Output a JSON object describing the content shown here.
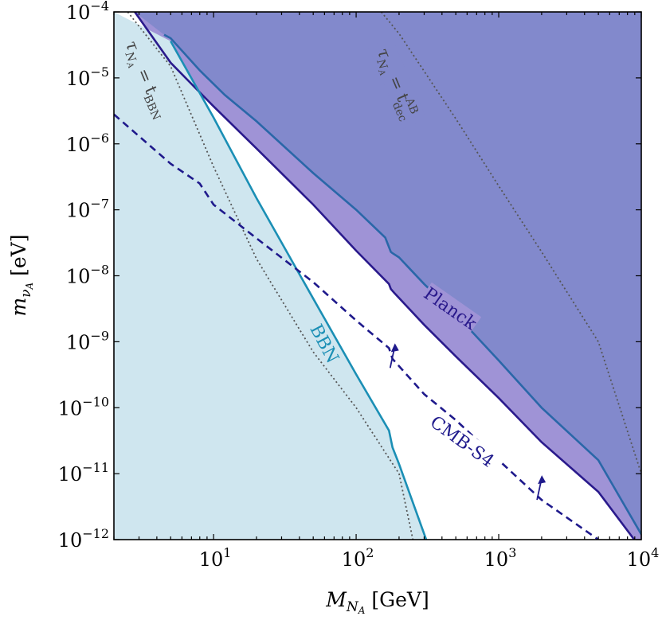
{
  "chart_data": {
    "type": "area",
    "title": "",
    "xlabel": "M_{N_A} [GeV]",
    "ylabel": "m_{ν_A} [eV]",
    "xscale": "log",
    "yscale": "log",
    "xlim": [
      2,
      10000
    ],
    "ylim": [
      1e-12,
      0.0001
    ],
    "x_ticks": [
      {
        "value": 10,
        "base": "10",
        "exp": "1"
      },
      {
        "value": 100,
        "base": "10",
        "exp": "2"
      },
      {
        "value": 1000,
        "base": "10",
        "exp": "3"
      },
      {
        "value": 10000,
        "base": "10",
        "exp": "4"
      }
    ],
    "y_ticks": [
      {
        "value": 0.0001,
        "base": "10",
        "exp": "−4"
      },
      {
        "value": 1e-05,
        "base": "10",
        "exp": "−5"
      },
      {
        "value": 1e-06,
        "base": "10",
        "exp": "−6"
      },
      {
        "value": 1e-07,
        "base": "10",
        "exp": "−7"
      },
      {
        "value": 1e-08,
        "base": "10",
        "exp": "−8"
      },
      {
        "value": 1e-09,
        "base": "10",
        "exp": "−9"
      },
      {
        "value": 1e-10,
        "base": "10",
        "exp": "−10"
      },
      {
        "value": 1e-11,
        "base": "10",
        "exp": "−11"
      },
      {
        "value": 1e-12,
        "base": "10",
        "exp": "−12"
      }
    ],
    "series": [
      {
        "name": "Planck",
        "style": "solid",
        "color": "#2a1a8c",
        "fill": "#8289cc",
        "x": [
          2.8,
          5,
          10,
          20,
          50,
          100,
          170,
          175,
          185,
          300,
          500,
          1000,
          2000,
          5000,
          10000
        ],
        "y": [
          0.0001,
          1.7e-05,
          3.7e-06,
          8.5e-07,
          1.2e-07,
          2.4e-08,
          7.5e-09,
          6.3e-09,
          5.5e-09,
          1.8e-09,
          6e-10,
          1.4e-10,
          3e-11,
          5.3e-12,
          7.2e-13
        ]
      },
      {
        "name": "Planck_outer",
        "style": "solid",
        "color": "#2a67a8",
        "fill": "#9f93d6",
        "x": [
          4.5,
          5,
          8,
          12,
          20,
          50,
          100,
          160,
          175,
          180,
          200,
          300,
          500,
          1000,
          2000,
          5000,
          10000
        ],
        "y": [
          4.5e-05,
          4e-05,
          1.3e-05,
          5.5e-06,
          2.2e-06,
          3.6e-07,
          1e-07,
          3.8e-08,
          2.3e-08,
          2.2e-08,
          1.9e-08,
          7.5e-09,
          2.6e-09,
          5.2e-10,
          1e-10,
          1.6e-11,
          1.2e-12
        ]
      },
      {
        "name": "BBN",
        "style": "solid",
        "color": "#1b8fb5",
        "fill": "#cfe6ef",
        "x": [
          2,
          2,
          5,
          10,
          20,
          50,
          100,
          170,
          180,
          200,
          310
        ],
        "y": [
          1e-12,
          0.0001,
          3.6e-05,
          2.5e-06,
          1.5e-07,
          4.5e-09,
          3.2e-10,
          4.5e-11,
          2.5e-11,
          1.4e-11,
          1e-12
        ]
      },
      {
        "name": "CMB-S4",
        "style": "dashed",
        "color": "#1f1a8c",
        "x": [
          2,
          5,
          8,
          10,
          20,
          50,
          100,
          170,
          180,
          300,
          500,
          1000,
          2000,
          5000
        ],
        "y": [
          2.8e-06,
          5e-07,
          2.5e-07,
          1.2e-07,
          3.7e-08,
          8e-09,
          2.1e-09,
          8e-10,
          5.5e-10,
          1.6e-10,
          6.5e-11,
          1.6e-11,
          4e-12,
          1e-12
        ]
      },
      {
        "name": "tau_BBN",
        "style": "dotted",
        "color": "#555555",
        "x": [
          2.5,
          5,
          10,
          20,
          50,
          100,
          200,
          250
        ],
        "y": [
          0.0001,
          1.5e-05,
          4.5e-07,
          1.8e-08,
          7e-10,
          1e-10,
          1e-11,
          1e-12
        ]
      },
      {
        "name": "tau_dec",
        "style": "dotted",
        "color": "#555555",
        "x": [
          150,
          200,
          500,
          1000,
          2000,
          5000,
          10000
        ],
        "y": [
          0.0001,
          4.7e-05,
          2.4e-06,
          2.3e-07,
          2.3e-08,
          1e-09,
          1e-11
        ]
      }
    ],
    "arrows": [
      {
        "x": 180,
        "y": 4e-10
      },
      {
        "x": 1930,
        "y": 4e-12
      }
    ],
    "annotations": {
      "planck": "Planck",
      "bbn": "BBN",
      "cmbs4": "CMB-S4",
      "tau_bbn": {
        "lhs": "τ",
        "lhs_sub": "N",
        "lhs_subsub": "A",
        "eq": " = t",
        "rhs_sub": "BBN"
      },
      "tau_dec": {
        "lhs": "τ",
        "lhs_sub": "N",
        "lhs_subsub": "A",
        "eq": " = t",
        "rhs_sup": "AB",
        "rhs_sub": "dec"
      }
    },
    "axis_text": {
      "x_main": "M",
      "x_sub": "N",
      "x_subsub": "A",
      "x_unit": " [GeV]",
      "y_main": "m",
      "y_sub": "ν",
      "y_subsub": "A",
      "y_unit": " [eV]"
    }
  }
}
